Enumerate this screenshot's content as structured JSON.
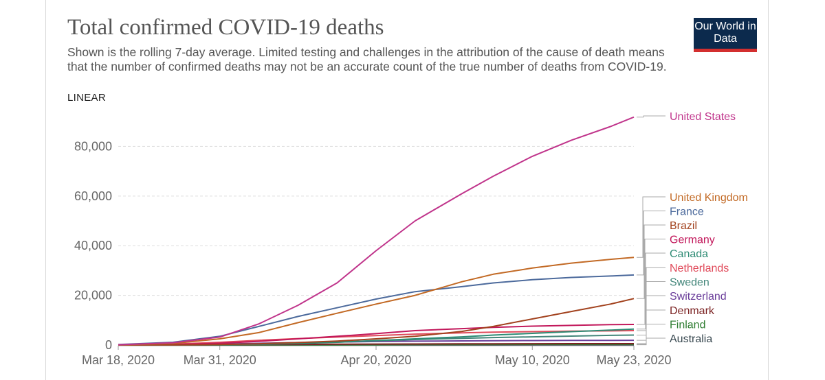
{
  "chart_data": {
    "type": "line",
    "title": "Total confirmed COVID-19 deaths",
    "subtitle": "Shown is the rolling 7-day average. Limited testing and challenges in the attribution of the cause of death means that the number of confirmed deaths may not be an accurate count of the true number of deaths from COVID-19.",
    "scale_label": "LINEAR",
    "logo": "Our World in Data",
    "x_ticks": [
      "Mar 18, 2020",
      "Mar 31, 2020",
      "Apr 20, 2020",
      "May 10, 2020",
      "May 23, 2020"
    ],
    "x_range": [
      "2020-03-18",
      "2020-05-23"
    ],
    "y_ticks": [
      "0",
      "20,000",
      "40,000",
      "60,000",
      "80,000"
    ],
    "ylim": [
      0,
      92000
    ],
    "grid": true,
    "legend": "right",
    "series": [
      {
        "name": "United States",
        "color": "#c0348b",
        "points": [
          [
            "2020-03-18",
            100
          ],
          [
            "2020-03-25",
            900
          ],
          [
            "2020-03-31",
            3200
          ],
          [
            "2020-04-05",
            8500
          ],
          [
            "2020-04-10",
            16000
          ],
          [
            "2020-04-15",
            25000
          ],
          [
            "2020-04-20",
            38000
          ],
          [
            "2020-04-25",
            50000
          ],
          [
            "2020-05-01",
            61000
          ],
          [
            "2020-05-05",
            68000
          ],
          [
            "2020-05-10",
            76000
          ],
          [
            "2020-05-15",
            82500
          ],
          [
            "2020-05-20",
            88000
          ],
          [
            "2020-05-23",
            91800
          ]
        ]
      },
      {
        "name": "United Kingdom",
        "color": "#c26924",
        "points": [
          [
            "2020-03-18",
            80
          ],
          [
            "2020-03-25",
            600
          ],
          [
            "2020-03-31",
            2500
          ],
          [
            "2020-04-05",
            5000
          ],
          [
            "2020-04-10",
            9000
          ],
          [
            "2020-04-15",
            12800
          ],
          [
            "2020-04-20",
            16500
          ],
          [
            "2020-04-25",
            20000
          ],
          [
            "2020-05-01",
            25500
          ],
          [
            "2020-05-05",
            28500
          ],
          [
            "2020-05-10",
            31000
          ],
          [
            "2020-05-15",
            33000
          ],
          [
            "2020-05-20",
            34500
          ],
          [
            "2020-05-23",
            35300
          ]
        ]
      },
      {
        "name": "France",
        "color": "#4c6a9c",
        "points": [
          [
            "2020-03-18",
            200
          ],
          [
            "2020-03-25",
            1100
          ],
          [
            "2020-03-31",
            3500
          ],
          [
            "2020-04-05",
            7500
          ],
          [
            "2020-04-10",
            11500
          ],
          [
            "2020-04-15",
            15000
          ],
          [
            "2020-04-20",
            18500
          ],
          [
            "2020-04-25",
            21500
          ],
          [
            "2020-05-01",
            23500
          ],
          [
            "2020-05-05",
            25000
          ],
          [
            "2020-05-10",
            26300
          ],
          [
            "2020-05-15",
            27200
          ],
          [
            "2020-05-20",
            27800
          ],
          [
            "2020-05-23",
            28200
          ]
        ]
      },
      {
        "name": "Brazil",
        "color": "#a2421e",
        "points": [
          [
            "2020-03-18",
            0
          ],
          [
            "2020-03-25",
            40
          ],
          [
            "2020-03-31",
            200
          ],
          [
            "2020-04-05",
            500
          ],
          [
            "2020-04-10",
            1000
          ],
          [
            "2020-04-15",
            1600
          ],
          [
            "2020-04-20",
            2500
          ],
          [
            "2020-04-25",
            3500
          ],
          [
            "2020-05-01",
            5500
          ],
          [
            "2020-05-05",
            7500
          ],
          [
            "2020-05-10",
            10500
          ],
          [
            "2020-05-15",
            13500
          ],
          [
            "2020-05-20",
            16500
          ],
          [
            "2020-05-23",
            18700
          ]
        ]
      },
      {
        "name": "Germany",
        "color": "#c2185b",
        "points": [
          [
            "2020-03-18",
            20
          ],
          [
            "2020-03-25",
            200
          ],
          [
            "2020-03-31",
            700
          ],
          [
            "2020-04-05",
            1500
          ],
          [
            "2020-04-10",
            2500
          ],
          [
            "2020-04-15",
            3500
          ],
          [
            "2020-04-20",
            4600
          ],
          [
            "2020-04-25",
            5800
          ],
          [
            "2020-05-01",
            6600
          ],
          [
            "2020-05-05",
            7100
          ],
          [
            "2020-05-10",
            7600
          ],
          [
            "2020-05-15",
            7900
          ],
          [
            "2020-05-20",
            8200
          ],
          [
            "2020-05-23",
            8300
          ]
        ]
      },
      {
        "name": "Canada",
        "color": "#2e8b74",
        "points": [
          [
            "2020-03-18",
            10
          ],
          [
            "2020-03-25",
            40
          ],
          [
            "2020-03-31",
            150
          ],
          [
            "2020-04-05",
            300
          ],
          [
            "2020-04-10",
            600
          ],
          [
            "2020-04-15",
            1100
          ],
          [
            "2020-04-20",
            1800
          ],
          [
            "2020-04-25",
            2500
          ],
          [
            "2020-05-01",
            3300
          ],
          [
            "2020-05-05",
            4000
          ],
          [
            "2020-05-10",
            4700
          ],
          [
            "2020-05-15",
            5400
          ],
          [
            "2020-05-20",
            6000
          ],
          [
            "2020-05-23",
            6400
          ]
        ]
      },
      {
        "name": "Netherlands",
        "color": "#e04a5a",
        "points": [
          [
            "2020-03-18",
            40
          ],
          [
            "2020-03-25",
            350
          ],
          [
            "2020-03-31",
            1100
          ],
          [
            "2020-04-05",
            1900
          ],
          [
            "2020-04-10",
            2600
          ],
          [
            "2020-04-15",
            3200
          ],
          [
            "2020-04-20",
            3800
          ],
          [
            "2020-04-25",
            4400
          ],
          [
            "2020-05-01",
            4900
          ],
          [
            "2020-05-05",
            5200
          ],
          [
            "2020-05-10",
            5400
          ],
          [
            "2020-05-15",
            5600
          ],
          [
            "2020-05-20",
            5700
          ],
          [
            "2020-05-23",
            5800
          ]
        ]
      },
      {
        "name": "Sweden",
        "color": "#43867a",
        "points": [
          [
            "2020-03-18",
            10
          ],
          [
            "2020-03-25",
            60
          ],
          [
            "2020-03-31",
            200
          ],
          [
            "2020-04-05",
            450
          ],
          [
            "2020-04-10",
            900
          ],
          [
            "2020-04-15",
            1300
          ],
          [
            "2020-04-20",
            1700
          ],
          [
            "2020-04-25",
            2200
          ],
          [
            "2020-05-01",
            2700
          ],
          [
            "2020-05-05",
            3000
          ],
          [
            "2020-05-10",
            3300
          ],
          [
            "2020-05-15",
            3600
          ],
          [
            "2020-05-20",
            3900
          ],
          [
            "2020-05-23",
            4000
          ]
        ]
      },
      {
        "name": "Switzerland",
        "color": "#6a3d9a",
        "points": [
          [
            "2020-03-18",
            30
          ],
          [
            "2020-03-25",
            150
          ],
          [
            "2020-03-31",
            400
          ],
          [
            "2020-04-05",
            700
          ],
          [
            "2020-04-10",
            1000
          ],
          [
            "2020-04-15",
            1200
          ],
          [
            "2020-04-20",
            1400
          ],
          [
            "2020-04-25",
            1550
          ],
          [
            "2020-05-01",
            1650
          ],
          [
            "2020-05-05",
            1750
          ],
          [
            "2020-05-10",
            1800
          ],
          [
            "2020-05-15",
            1850
          ],
          [
            "2020-05-20",
            1880
          ],
          [
            "2020-05-23",
            1900
          ]
        ]
      },
      {
        "name": "Denmark",
        "color": "#7b2222",
        "points": [
          [
            "2020-03-18",
            5
          ],
          [
            "2020-03-25",
            30
          ],
          [
            "2020-03-31",
            100
          ],
          [
            "2020-04-05",
            200
          ],
          [
            "2020-04-10",
            250
          ],
          [
            "2020-04-15",
            320
          ],
          [
            "2020-04-20",
            380
          ],
          [
            "2020-04-25",
            420
          ],
          [
            "2020-05-01",
            470
          ],
          [
            "2020-05-05",
            500
          ],
          [
            "2020-05-10",
            530
          ],
          [
            "2020-05-15",
            550
          ],
          [
            "2020-05-20",
            560
          ],
          [
            "2020-05-23",
            565
          ]
        ]
      },
      {
        "name": "Finland",
        "color": "#2f7d32",
        "points": [
          [
            "2020-03-18",
            0
          ],
          [
            "2020-03-25",
            5
          ],
          [
            "2020-03-31",
            15
          ],
          [
            "2020-04-05",
            30
          ],
          [
            "2020-04-10",
            50
          ],
          [
            "2020-04-15",
            80
          ],
          [
            "2020-04-20",
            110
          ],
          [
            "2020-04-25",
            180
          ],
          [
            "2020-05-01",
            220
          ],
          [
            "2020-05-05",
            250
          ],
          [
            "2020-05-10",
            270
          ],
          [
            "2020-05-15",
            290
          ],
          [
            "2020-05-20",
            300
          ],
          [
            "2020-05-23",
            310
          ]
        ]
      },
      {
        "name": "Australia",
        "color": "#37474f",
        "points": [
          [
            "2020-03-18",
            5
          ],
          [
            "2020-03-25",
            10
          ],
          [
            "2020-03-31",
            20
          ],
          [
            "2020-04-05",
            40
          ],
          [
            "2020-04-10",
            55
          ],
          [
            "2020-04-15",
            65
          ],
          [
            "2020-04-20",
            70
          ],
          [
            "2020-04-25",
            80
          ],
          [
            "2020-05-01",
            90
          ],
          [
            "2020-05-05",
            95
          ],
          [
            "2020-05-10",
            97
          ],
          [
            "2020-05-15",
            99
          ],
          [
            "2020-05-20",
            100
          ],
          [
            "2020-05-23",
            102
          ]
        ]
      }
    ]
  }
}
